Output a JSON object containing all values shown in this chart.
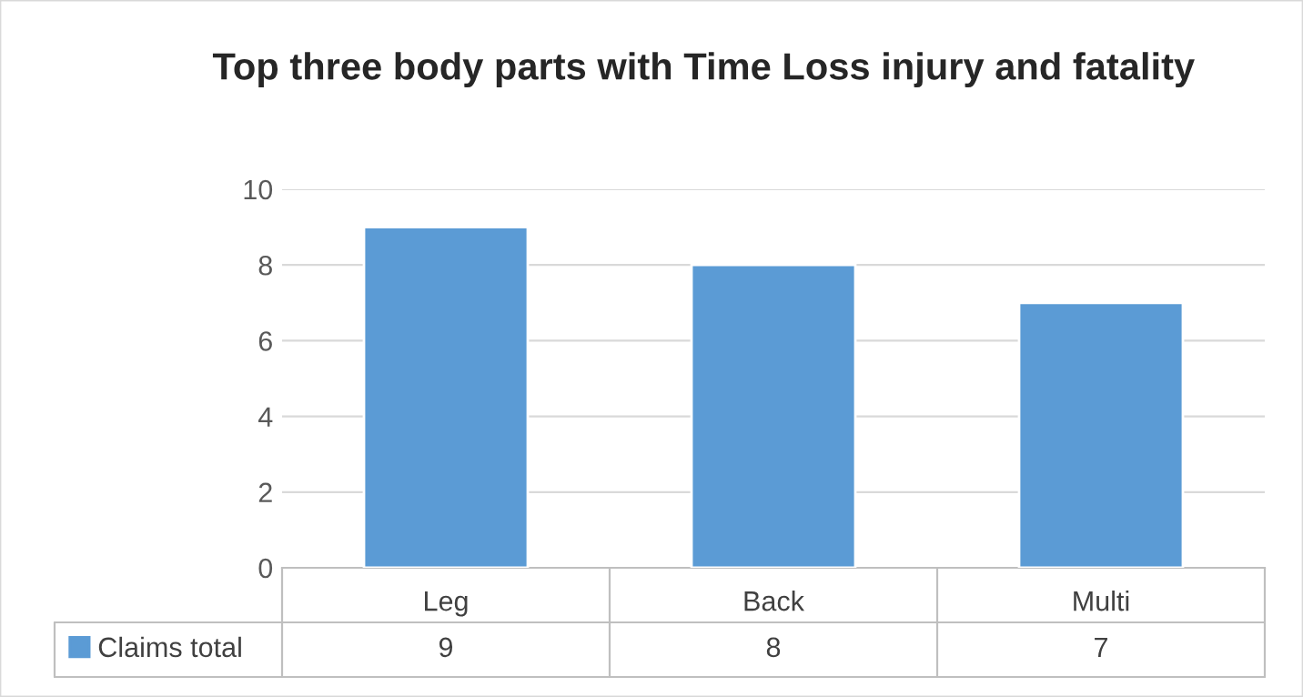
{
  "chart_data": {
    "type": "bar",
    "title": "Top three body parts with Time Loss injury and fatality",
    "categories": [
      "Leg",
      "Back",
      "Multi"
    ],
    "series": [
      {
        "name": "Claims total",
        "color": "#5b9bd5",
        "values": [
          9,
          8,
          7
        ]
      }
    ],
    "ylim": [
      0,
      10
    ],
    "yticks": [
      0,
      2,
      4,
      6,
      8,
      10
    ],
    "grid": "y",
    "legend": "bottom",
    "data_labels": true
  }
}
